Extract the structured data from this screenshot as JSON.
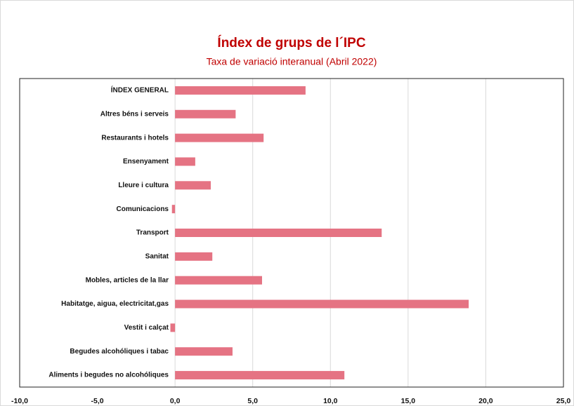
{
  "chart_data": {
    "type": "bar",
    "orientation": "horizontal",
    "title": "Índex de grups de l´IPC",
    "subtitle": "Taxa de variació interanual (Abril 2022)",
    "categories": [
      "ÍNDEX GENERAL",
      "Altres béns i serveis",
      "Restaurants i hotels",
      "Ensenyament",
      "Lleure i cultura",
      "Comunicacions",
      "Transport",
      "Sanitat",
      "Mobles, articles de la llar",
      "Habitatge, aigua, electricitat,gas",
      "Vestit i calçat",
      "Begudes alcohóliques i tabac",
      "Aliments i begudes no alcohóliques"
    ],
    "values": [
      8.4,
      3.9,
      5.7,
      1.3,
      2.3,
      -0.2,
      13.3,
      2.4,
      5.6,
      18.9,
      -0.3,
      3.7,
      10.9
    ],
    "color": "#e57383",
    "xlim": [
      -10,
      25
    ],
    "xticks": [
      {
        "value": -10,
        "label": "-10,0"
      },
      {
        "value": -5,
        "label": "-5,0"
      },
      {
        "value": 0,
        "label": "0,0"
      },
      {
        "value": 5,
        "label": "5,0"
      },
      {
        "value": 10,
        "label": "10,0"
      },
      {
        "value": 15,
        "label": "15,0"
      },
      {
        "value": 20,
        "label": "20,0"
      },
      {
        "value": 25,
        "label": "25,0"
      }
    ],
    "grid": true
  }
}
